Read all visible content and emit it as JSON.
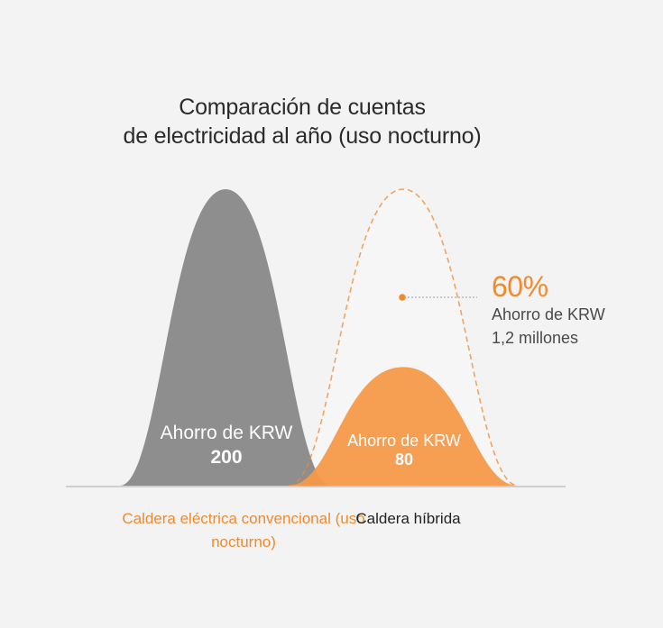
{
  "title": [
    "Comparación de cuentas",
    "de electricidad al año (uso nocturno)"
  ],
  "colors": {
    "conventional": "#8e8e8e",
    "hybrid": "#f59a4a",
    "accent": "#ef8a2f",
    "baseline": "#cfcfcf",
    "ghost_fill": "#f6f6f6",
    "label_dark": "#222222"
  },
  "chart_data": {
    "type": "area",
    "ylim": [
      0,
      200
    ],
    "categories": [
      "Caldera eléctrica\nconvencional (uso nocturno)",
      "Caldera híbrida"
    ],
    "series": [
      {
        "values": [
          200,
          80
        ],
        "labels": [
          {
            "line1": "Ahorro de KRW",
            "line2": "200"
          },
          {
            "line1": "Ahorro de KRW",
            "line2": "80"
          }
        ]
      }
    ],
    "reference_outline": {
      "category": "Caldera híbrida",
      "value": 200,
      "style": "dashed"
    },
    "annotation": {
      "percent": "60%",
      "line1": "Ahorro de KRW",
      "line2": "1,2 millones"
    }
  }
}
